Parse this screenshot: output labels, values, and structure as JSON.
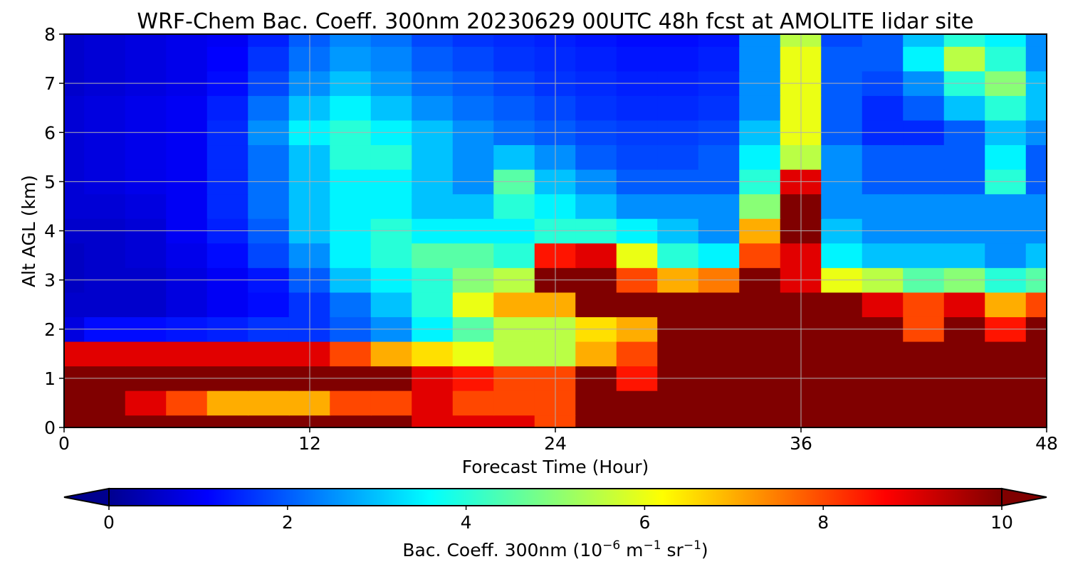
{
  "chart_data": {
    "type": "heatmap",
    "title": "WRF-Chem Bac. Coeff. 300nm  20230629 00UTC 48h fcst at AMOLITE lidar site",
    "xlabel": "Forecast Time (Hour)",
    "ylabel": "Alt AGL (km)",
    "xlim": [
      0,
      48
    ],
    "ylim": [
      0,
      8
    ],
    "x_ticks": [
      0,
      12,
      24,
      36,
      48
    ],
    "x_tick_labels": [
      "0",
      "12",
      "24",
      "36",
      "48"
    ],
    "y_ticks": [
      0,
      1,
      2,
      3,
      4,
      5,
      6,
      7,
      8
    ],
    "y_tick_labels": [
      "0",
      "1",
      "2",
      "3",
      "4",
      "5",
      "6",
      "7",
      "8"
    ],
    "grid": true,
    "colormap": "jet",
    "colorbar": {
      "label": "Bac. Coeff. 300nm",
      "unit_base": "10",
      "unit_exp": "−6",
      "unit_m": "m",
      "unit_m_exp": "−1",
      "unit_sr": "sr",
      "unit_sr_exp": "−1",
      "range": [
        0,
        10
      ],
      "extend": "both",
      "ticks": [
        0,
        2,
        4,
        6,
        8,
        10
      ],
      "tick_labels": [
        "0",
        "2",
        "4",
        "6",
        "8",
        "10"
      ]
    },
    "x_hours": [
      0,
      2,
      4,
      6,
      8,
      10,
      12,
      14,
      16,
      18,
      20,
      22,
      24,
      26,
      28,
      30,
      32,
      34,
      36,
      38,
      40,
      42,
      44,
      46,
      48
    ],
    "y_km": [
      0,
      0.5,
      1,
      1.5,
      2,
      2.5,
      3,
      3.5,
      4,
      4.5,
      5,
      5.5,
      6,
      6.5,
      7,
      7.5,
      8
    ],
    "values": [
      [
        10,
        10,
        10,
        10,
        10,
        10,
        10,
        10,
        10,
        9,
        9,
        9,
        8,
        10,
        10,
        10,
        10,
        10,
        10,
        10,
        10,
        10,
        10,
        10,
        10
      ],
      [
        10,
        10,
        9,
        8,
        7,
        7,
        7,
        8,
        8,
        9,
        8,
        8,
        8,
        10,
        10,
        10,
        10,
        10,
        10,
        10,
        10,
        10,
        10,
        10,
        10
      ],
      [
        10,
        10,
        10,
        10,
        10,
        10,
        10,
        10,
        10,
        9,
        8.5,
        8,
        8,
        10,
        8.5,
        10,
        10,
        10,
        10,
        10,
        10,
        10,
        10,
        10,
        10
      ],
      [
        9,
        9,
        9,
        9,
        9,
        9,
        9,
        8,
        7,
        6.5,
        6,
        5.5,
        5.5,
        7,
        8,
        10,
        10,
        10,
        10,
        10,
        10,
        10,
        10,
        10,
        10
      ],
      [
        0.8,
        1.2,
        1.2,
        1.3,
        1.4,
        1.6,
        1.6,
        2,
        2.5,
        3.5,
        4.5,
        5.5,
        5.5,
        6.5,
        7,
        10,
        10,
        10,
        10,
        10,
        10,
        8,
        10,
        8.5,
        10
      ],
      [
        0.6,
        0.6,
        0.6,
        0.8,
        1,
        1.2,
        1.6,
        2.2,
        3,
        4,
        6,
        7,
        7,
        10,
        10,
        10,
        10,
        10,
        10,
        10,
        9,
        8,
        9,
        7,
        8
      ],
      [
        0.5,
        0.6,
        0.6,
        0.8,
        1,
        1.3,
        2,
        3,
        3.5,
        4,
        5,
        5.5,
        10,
        10,
        8,
        7,
        7.5,
        10,
        9,
        6,
        5.5,
        4.5,
        5,
        4,
        4.5
      ],
      [
        0.5,
        0.6,
        0.7,
        0.9,
        1.2,
        1.8,
        2.5,
        3.5,
        4,
        4.5,
        4.5,
        4,
        8.5,
        9,
        6,
        4,
        3.5,
        8,
        9,
        3.5,
        3,
        3,
        3,
        2.5,
        3
      ],
      [
        0.6,
        0.6,
        0.7,
        1,
        1.4,
        2,
        3,
        3.5,
        4,
        3.5,
        3.5,
        3.5,
        4,
        4,
        3.5,
        3,
        2.5,
        7,
        10,
        3,
        2.5,
        2.5,
        2.5,
        2.5,
        2.5
      ],
      [
        0.7,
        0.7,
        0.8,
        1,
        1.5,
        2.2,
        3,
        3.5,
        3.5,
        3,
        3,
        4,
        3.5,
        3,
        2.5,
        2.5,
        2.5,
        5,
        10,
        2.5,
        2.5,
        2.5,
        2.5,
        2.5,
        2.5
      ],
      [
        0.7,
        0.8,
        0.9,
        1,
        1.5,
        2.2,
        3,
        3.5,
        3.5,
        3,
        2.5,
        4.5,
        3,
        2.5,
        2,
        2,
        2,
        4,
        9,
        2.5,
        2,
        2,
        2,
        4,
        2
      ],
      [
        0.7,
        0.8,
        0.9,
        1,
        1.5,
        2.2,
        3,
        4,
        4,
        3,
        2.5,
        3,
        2.5,
        2,
        1.8,
        1.8,
        2,
        3.5,
        5.5,
        2.5,
        2,
        2,
        2,
        3.5,
        2
      ],
      [
        0.7,
        0.8,
        0.9,
        1,
        1.5,
        2.5,
        3.5,
        4,
        3.5,
        3,
        2.5,
        2.2,
        2,
        1.8,
        1.7,
        1.7,
        1.8,
        3,
        6,
        2,
        1.5,
        1.5,
        2,
        3,
        2.5
      ],
      [
        0.7,
        0.8,
        0.9,
        1,
        1.4,
        2.2,
        3,
        3.5,
        3,
        2.5,
        2.2,
        2,
        1.8,
        1.6,
        1.5,
        1.5,
        1.6,
        2.5,
        6,
        2,
        1.5,
        2,
        3,
        4,
        3
      ],
      [
        0.6,
        0.7,
        0.8,
        0.9,
        1.2,
        1.8,
        2.5,
        3,
        2.6,
        2.2,
        2,
        1.8,
        1.6,
        1.5,
        1.4,
        1.4,
        1.5,
        2.5,
        6,
        2,
        1.8,
        2.5,
        4,
        5,
        3
      ],
      [
        0.6,
        0.7,
        0.8,
        0.9,
        1.1,
        1.6,
        2.2,
        2.6,
        2.4,
        2,
        1.8,
        1.6,
        1.5,
        1.4,
        1.3,
        1.3,
        1.4,
        2.5,
        6,
        2,
        2,
        3.5,
        5.5,
        4,
        2.5
      ],
      [
        0.6,
        0.7,
        0.8,
        0.9,
        1,
        1.4,
        2,
        2.4,
        2.2,
        1.8,
        1.6,
        1.5,
        1.4,
        1.3,
        1.2,
        1.2,
        1.3,
        2.5,
        5.5,
        1.8,
        2,
        3,
        4,
        3.5,
        2.5
      ]
    ]
  }
}
